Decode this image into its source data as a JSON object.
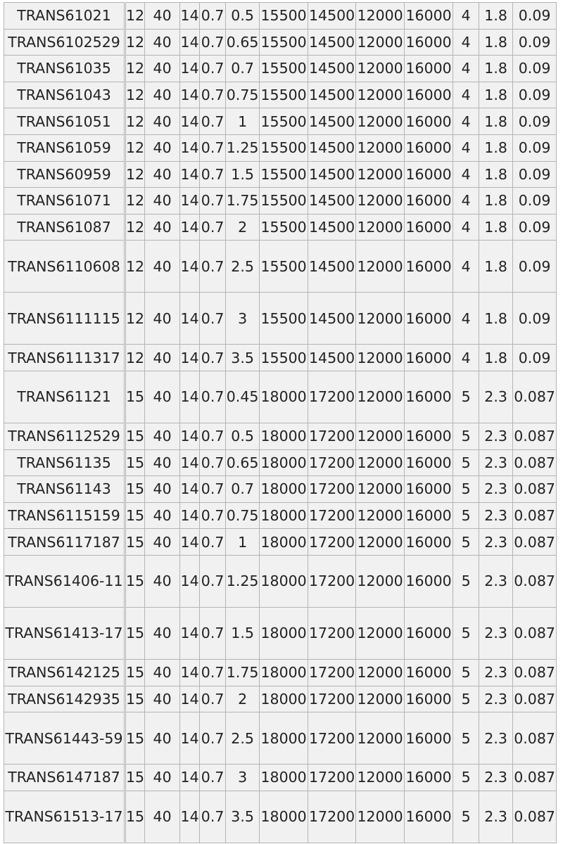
{
  "table": {
    "rows": [
      [
        "TRANS61021",
        "12",
        "40",
        "14",
        "0.7",
        "0.5",
        "15500",
        "14500",
        "12000",
        "16000",
        "4",
        "1.8",
        "0.09"
      ],
      [
        "TRANS6102529",
        "12",
        "40",
        "14",
        "0.7",
        "0.65",
        "15500",
        "14500",
        "12000",
        "16000",
        "4",
        "1.8",
        "0.09"
      ],
      [
        "TRANS61035",
        "12",
        "40",
        "14",
        "0.7",
        "0.7",
        "15500",
        "14500",
        "12000",
        "16000",
        "4",
        "1.8",
        "0.09"
      ],
      [
        "TRANS61043",
        "12",
        "40",
        "14",
        "0.7",
        "0.75",
        "15500",
        "14500",
        "12000",
        "16000",
        "4",
        "1.8",
        "0.09"
      ],
      [
        "TRANS61051",
        "12",
        "40",
        "14",
        "0.7",
        "1",
        "15500",
        "14500",
        "12000",
        "16000",
        "4",
        "1.8",
        "0.09"
      ],
      [
        "TRANS61059",
        "12",
        "40",
        "14",
        "0.7",
        "1.25",
        "15500",
        "14500",
        "12000",
        "16000",
        "4",
        "1.8",
        "0.09"
      ],
      [
        "TRANS60959",
        "12",
        "40",
        "14",
        "0.7",
        "1.5",
        "15500",
        "14500",
        "12000",
        "16000",
        "4",
        "1.8",
        "0.09"
      ],
      [
        "TRANS61071",
        "12",
        "40",
        "14",
        "0.7",
        "1.75",
        "15500",
        "14500",
        "12000",
        "16000",
        "4",
        "1.8",
        "0.09"
      ],
      [
        "TRANS61087",
        "12",
        "40",
        "14",
        "0.7",
        "2",
        "15500",
        "14500",
        "12000",
        "16000",
        "4",
        "1.8",
        "0.09"
      ],
      [
        "TRANS6110608",
        "12",
        "40",
        "14",
        "0.7",
        "2.5",
        "15500",
        "14500",
        "12000",
        "16000",
        "4",
        "1.8",
        "0.09"
      ],
      [
        "TRANS6111115",
        "12",
        "40",
        "14",
        "0.7",
        "3",
        "15500",
        "14500",
        "12000",
        "16000",
        "4",
        "1.8",
        "0.09"
      ],
      [
        "TRANS6111317",
        "12",
        "40",
        "14",
        "0.7",
        "3.5",
        "15500",
        "14500",
        "12000",
        "16000",
        "4",
        "1.8",
        "0.09"
      ],
      [
        "TRANS61121",
        "15",
        "40",
        "14",
        "0.7",
        "0.45",
        "18000",
        "17200",
        "12000",
        "16000",
        "5",
        "2.3",
        "0.087"
      ],
      [
        "TRANS6112529",
        "15",
        "40",
        "14",
        "0.7",
        "0.5",
        "18000",
        "17200",
        "12000",
        "16000",
        "5",
        "2.3",
        "0.087"
      ],
      [
        "TRANS61135",
        "15",
        "40",
        "14",
        "0.7",
        "0.65",
        "18000",
        "17200",
        "12000",
        "16000",
        "5",
        "2.3",
        "0.087"
      ],
      [
        "TRANS61143",
        "15",
        "40",
        "14",
        "0.7",
        "0.7",
        "18000",
        "17200",
        "12000",
        "16000",
        "5",
        "2.3",
        "0.087"
      ],
      [
        "TRANS6115159",
        "15",
        "40",
        "14",
        "0.7",
        "0.75",
        "18000",
        "17200",
        "12000",
        "16000",
        "5",
        "2.3",
        "0.087"
      ],
      [
        "TRANS6117187",
        "15",
        "40",
        "14",
        "0.7",
        "1",
        "18000",
        "17200",
        "12000",
        "16000",
        "5",
        "2.3",
        "0.087"
      ],
      [
        "TRANS61406-11",
        "15",
        "40",
        "14",
        "0.7",
        "1.25",
        "18000",
        "17200",
        "12000",
        "16000",
        "5",
        "2.3",
        "0.087"
      ],
      [
        "TRANS61413-17",
        "15",
        "40",
        "14",
        "0.7",
        "1.5",
        "18000",
        "17200",
        "12000",
        "16000",
        "5",
        "2.3",
        "0.087"
      ],
      [
        "TRANS6142125",
        "15",
        "40",
        "14",
        "0.7",
        "1.75",
        "18000",
        "17200",
        "12000",
        "16000",
        "5",
        "2.3",
        "0.087"
      ],
      [
        "TRANS6142935",
        "15",
        "40",
        "14",
        "0.7",
        "2",
        "18000",
        "17200",
        "12000",
        "16000",
        "5",
        "2.3",
        "0.087"
      ],
      [
        "TRANS61443-59",
        "15",
        "40",
        "14",
        "0.7",
        "2.5",
        "18000",
        "17200",
        "12000",
        "16000",
        "5",
        "2.3",
        "0.087"
      ],
      [
        "TRANS6147187",
        "15",
        "40",
        "14",
        "0.7",
        "3",
        "18000",
        "17200",
        "12000",
        "16000",
        "5",
        "2.3",
        "0.087"
      ],
      [
        "TRANS61513-17",
        "15",
        "40",
        "14",
        "0.7",
        "3.5",
        "18000",
        "17200",
        "12000",
        "16000",
        "5",
        "2.3",
        "0.087"
      ]
    ]
  }
}
